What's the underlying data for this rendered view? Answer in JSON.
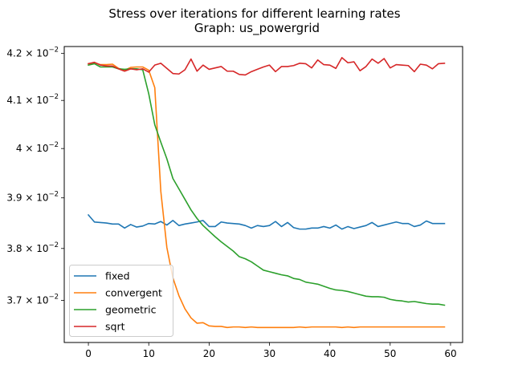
{
  "chart_data": {
    "type": "line",
    "title": "Stress over iterations for different learning rates",
    "subtitle": "Graph: us_powergrid",
    "xlabel": "",
    "ylabel": "",
    "xlim": [
      -4,
      62
    ],
    "ylim": [
      0.03621,
      0.04215
    ],
    "yscale": "log",
    "x_ticks": [
      0,
      10,
      20,
      30,
      40,
      50,
      60
    ],
    "x_tick_labels": [
      "0",
      "10",
      "20",
      "30",
      "40",
      "50",
      "60"
    ],
    "y_ticks": [
      {
        "value": 0.037,
        "mantissa": "3.7",
        "base": "10",
        "exp": "−2"
      },
      {
        "value": 0.038,
        "mantissa": "3.8",
        "base": "10",
        "exp": "−2"
      },
      {
        "value": 0.039,
        "mantissa": "3.9",
        "base": "10",
        "exp": "−2"
      },
      {
        "value": 0.04,
        "mantissa": "4",
        "base": "10",
        "exp": "−2"
      },
      {
        "value": 0.041,
        "mantissa": "4.1",
        "base": "10",
        "exp": "−2"
      },
      {
        "value": 0.042,
        "mantissa": "4.2",
        "base": "10",
        "exp": "−2"
      }
    ],
    "grid": false,
    "legend_position": "lower-left",
    "x": [
      0,
      1,
      2,
      3,
      4,
      5,
      6,
      7,
      8,
      9,
      10,
      11,
      12,
      13,
      14,
      15,
      16,
      17,
      18,
      19,
      20,
      21,
      22,
      23,
      24,
      25,
      26,
      27,
      28,
      29,
      30,
      31,
      32,
      33,
      34,
      35,
      36,
      37,
      38,
      39,
      40,
      41,
      42,
      43,
      44,
      45,
      46,
      47,
      48,
      49,
      50,
      51,
      52,
      53,
      54,
      55,
      56,
      57,
      58,
      59
    ],
    "series": [
      {
        "name": "fixed",
        "color": "#1f77b4",
        "values": [
          0.03866,
          0.03852,
          0.03851,
          0.0385,
          0.03848,
          0.03848,
          0.0384,
          0.03847,
          0.03842,
          0.03844,
          0.03849,
          0.03848,
          0.03853,
          0.03846,
          0.03855,
          0.03845,
          0.03848,
          0.0385,
          0.03852,
          0.03855,
          0.03843,
          0.03843,
          0.03852,
          0.0385,
          0.03849,
          0.03848,
          0.03845,
          0.0384,
          0.03845,
          0.03843,
          0.03845,
          0.03853,
          0.03843,
          0.03851,
          0.03841,
          0.03838,
          0.03838,
          0.0384,
          0.0384,
          0.03843,
          0.0384,
          0.03846,
          0.03838,
          0.03843,
          0.03839,
          0.03842,
          0.03845,
          0.03851,
          0.03843,
          0.03846,
          0.03849,
          0.03852,
          0.03849,
          0.03849,
          0.03843,
          0.03846,
          0.03854,
          0.03849,
          0.03849,
          0.03849
        ]
      },
      {
        "name": "convergent",
        "color": "#ff7f0e",
        "values": [
          0.04178,
          0.0418,
          0.04176,
          0.04176,
          0.04177,
          0.04168,
          0.04164,
          0.0417,
          0.04171,
          0.04171,
          0.04164,
          0.04127,
          0.03913,
          0.03802,
          0.03743,
          0.03709,
          0.03684,
          0.03667,
          0.03657,
          0.03658,
          0.03652,
          0.03651,
          0.03651,
          0.03649,
          0.0365,
          0.0365,
          0.03649,
          0.0365,
          0.03649,
          0.03649,
          0.03649,
          0.03649,
          0.03649,
          0.03649,
          0.03649,
          0.0365,
          0.03649,
          0.0365,
          0.0365,
          0.0365,
          0.0365,
          0.0365,
          0.03649,
          0.0365,
          0.03649,
          0.0365,
          0.0365,
          0.0365,
          0.0365,
          0.0365,
          0.0365,
          0.0365,
          0.0365,
          0.0365,
          0.0365,
          0.0365,
          0.0365,
          0.0365,
          0.0365,
          0.0365
        ]
      },
      {
        "name": "geometric",
        "color": "#2ca02c",
        "values": [
          0.04175,
          0.04178,
          0.04171,
          0.04171,
          0.04171,
          0.04167,
          0.04166,
          0.04167,
          0.04167,
          0.04165,
          0.04114,
          0.04049,
          0.04013,
          0.03979,
          0.03939,
          0.03918,
          0.03897,
          0.03876,
          0.03859,
          0.03845,
          0.03834,
          0.03823,
          0.03813,
          0.03804,
          0.03795,
          0.03784,
          0.0378,
          0.03774,
          0.03766,
          0.03758,
          0.03755,
          0.03752,
          0.03749,
          0.03747,
          0.03742,
          0.0374,
          0.03735,
          0.03733,
          0.03731,
          0.03727,
          0.03723,
          0.0372,
          0.03719,
          0.03717,
          0.03714,
          0.03711,
          0.03708,
          0.03707,
          0.03707,
          0.03706,
          0.03702,
          0.037,
          0.03699,
          0.03697,
          0.03698,
          0.03696,
          0.03694,
          0.03693,
          0.03693,
          0.03691
        ]
      },
      {
        "name": "sqrt",
        "color": "#d62728",
        "values": [
          0.04178,
          0.04181,
          0.04175,
          0.04173,
          0.04173,
          0.04167,
          0.04162,
          0.04167,
          0.04165,
          0.04167,
          0.0416,
          0.04175,
          0.04179,
          0.04168,
          0.04157,
          0.04156,
          0.04165,
          0.04188,
          0.04162,
          0.04175,
          0.04166,
          0.04169,
          0.04172,
          0.04162,
          0.04162,
          0.04155,
          0.04154,
          0.04161,
          0.04166,
          0.04171,
          0.04175,
          0.04161,
          0.04172,
          0.04172,
          0.04174,
          0.04179,
          0.04178,
          0.04169,
          0.04186,
          0.04176,
          0.04175,
          0.04168,
          0.04191,
          0.0418,
          0.04182,
          0.04163,
          0.04172,
          0.04188,
          0.04179,
          0.04189,
          0.04169,
          0.04176,
          0.04175,
          0.04174,
          0.04161,
          0.04177,
          0.04175,
          0.04167,
          0.04178,
          0.04179
        ]
      }
    ]
  }
}
